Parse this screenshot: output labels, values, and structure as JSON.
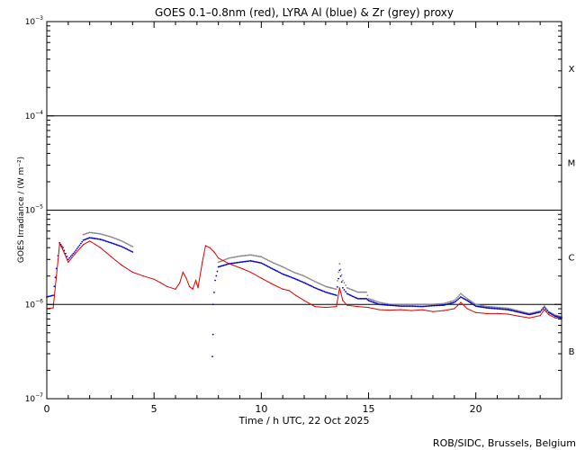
{
  "chart_data": {
    "type": "line",
    "title": "GOES 0.1–0.8nm (red), LYRA Al (blue) & Zr (grey) proxy",
    "xlabel": "Time / h UTC, 22 Oct 2025",
    "ylabel": "GOES Irradiance / (W m⁻²)",
    "y_scale": "log",
    "xlim": [
      0,
      24
    ],
    "ylim": [
      1e-07,
      0.001
    ],
    "x_ticks": [
      0,
      5,
      10,
      15,
      20
    ],
    "y_ticks": [
      {
        "value": 1e-07,
        "base": "10",
        "exp": "−7"
      },
      {
        "value": 1e-06,
        "base": "10",
        "exp": "−6"
      },
      {
        "value": 1e-05,
        "base": "10",
        "exp": "−5"
      },
      {
        "value": 0.0001,
        "base": "10",
        "exp": "−4"
      },
      {
        "value": 0.001,
        "base": "10",
        "exp": "−3"
      }
    ],
    "threshold_lines": [
      1e-06,
      1e-05,
      0.0001
    ],
    "flare_classes": [
      {
        "label": "X",
        "value": 0.00032
      },
      {
        "label": "M",
        "value": 3.2e-05
      },
      {
        "label": "C",
        "value": 3.2e-06
      },
      {
        "label": "B",
        "value": 3.2e-07
      }
    ],
    "grid": false,
    "series": [
      {
        "name": "GOES 0.1–0.8nm",
        "color": "#dd0000",
        "style": "line",
        "points": [
          [
            0.0,
            9e-07
          ],
          [
            0.3,
            9.2e-07
          ],
          [
            0.45,
            2e-06
          ],
          [
            0.6,
            4.4e-06
          ],
          [
            0.75,
            3.8e-06
          ],
          [
            1.0,
            2.8e-06
          ],
          [
            1.3,
            3.4e-06
          ],
          [
            1.7,
            4.3e-06
          ],
          [
            2.0,
            4.7e-06
          ],
          [
            2.5,
            4e-06
          ],
          [
            3.0,
            3.2e-06
          ],
          [
            3.5,
            2.6e-06
          ],
          [
            4.0,
            2.2e-06
          ],
          [
            4.5,
            2e-06
          ],
          [
            5.0,
            1.85e-06
          ],
          [
            5.3,
            1.7e-06
          ],
          [
            5.6,
            1.55e-06
          ],
          [
            6.0,
            1.45e-06
          ],
          [
            6.2,
            1.7e-06
          ],
          [
            6.35,
            2.2e-06
          ],
          [
            6.5,
            1.9e-06
          ],
          [
            6.65,
            1.55e-06
          ],
          [
            6.8,
            1.45e-06
          ],
          [
            6.95,
            1.8e-06
          ],
          [
            7.05,
            1.5e-06
          ],
          [
            7.25,
            2.8e-06
          ],
          [
            7.4,
            4.2e-06
          ],
          [
            7.6,
            4e-06
          ],
          [
            7.8,
            3.6e-06
          ],
          [
            8.0,
            3.1e-06
          ],
          [
            8.5,
            2.7e-06
          ],
          [
            9.0,
            2.45e-06
          ],
          [
            9.5,
            2.2e-06
          ],
          [
            10.0,
            1.9e-06
          ],
          [
            10.5,
            1.65e-06
          ],
          [
            11.0,
            1.45e-06
          ],
          [
            11.3,
            1.4e-06
          ],
          [
            11.6,
            1.25e-06
          ],
          [
            12.0,
            1.1e-06
          ],
          [
            12.5,
            9.5e-07
          ],
          [
            13.0,
            9.3e-07
          ],
          [
            13.5,
            9.5e-07
          ],
          [
            13.65,
            1.5e-06
          ],
          [
            13.8,
            1.1e-06
          ],
          [
            14.0,
            9.8e-07
          ],
          [
            14.5,
            9.5e-07
          ],
          [
            15.0,
            9.3e-07
          ],
          [
            15.5,
            8.8e-07
          ],
          [
            16.0,
            8.7e-07
          ],
          [
            16.5,
            8.8e-07
          ],
          [
            17.0,
            8.6e-07
          ],
          [
            17.5,
            8.8e-07
          ],
          [
            18.0,
            8.4e-07
          ],
          [
            18.5,
            8.6e-07
          ],
          [
            19.0,
            9e-07
          ],
          [
            19.3,
            1.05e-06
          ],
          [
            19.6,
            9e-07
          ],
          [
            20.0,
            8.2e-07
          ],
          [
            20.5,
            8e-07
          ],
          [
            21.0,
            8e-07
          ],
          [
            21.5,
            7.9e-07
          ],
          [
            22.0,
            7.5e-07
          ],
          [
            22.5,
            7.2e-07
          ],
          [
            23.0,
            7.6e-07
          ],
          [
            23.2,
            8.8e-07
          ],
          [
            23.4,
            7.8e-07
          ],
          [
            23.7,
            7.2e-07
          ],
          [
            24.0,
            7e-07
          ]
        ]
      },
      {
        "name": "LYRA Al",
        "color": "#0000cc",
        "style": "dots",
        "points": [
          [
            0.0,
            1.2e-06
          ],
          [
            0.3,
            1.25e-06
          ],
          [
            0.45,
            2.4e-06
          ],
          [
            0.6,
            4.5e-06
          ],
          [
            0.75,
            4e-06
          ],
          [
            1.0,
            3e-06
          ],
          [
            1.3,
            3.6e-06
          ],
          [
            1.7,
            4.8e-06
          ],
          [
            2.0,
            5.1e-06
          ],
          [
            2.5,
            4.9e-06
          ],
          [
            3.0,
            4.5e-06
          ],
          [
            3.5,
            4.1e-06
          ],
          [
            4.0,
            3.6e-06
          ],
          [
            7.75,
            1e-06
          ],
          [
            7.85,
            1.8e-06
          ],
          [
            8.0,
            2.5e-06
          ],
          [
            8.5,
            2.7e-06
          ],
          [
            9.0,
            2.8e-06
          ],
          [
            9.5,
            2.9e-06
          ],
          [
            10.0,
            2.75e-06
          ],
          [
            10.5,
            2.4e-06
          ],
          [
            11.0,
            2.1e-06
          ],
          [
            11.5,
            1.9e-06
          ],
          [
            12.0,
            1.7e-06
          ],
          [
            12.5,
            1.5e-06
          ],
          [
            13.0,
            1.35e-06
          ],
          [
            13.5,
            1.25e-06
          ],
          [
            13.65,
            2.3e-06
          ],
          [
            13.8,
            1.5e-06
          ],
          [
            14.0,
            1.3e-06
          ],
          [
            14.5,
            1.15e-06
          ],
          [
            14.9,
            1.15e-06
          ],
          [
            15.0,
            1.1e-06
          ],
          [
            15.5,
            1e-06
          ],
          [
            16.0,
            9.8e-07
          ],
          [
            16.5,
            9.6e-07
          ],
          [
            17.0,
            9.6e-07
          ],
          [
            17.5,
            9.5e-07
          ],
          [
            18.0,
            9.7e-07
          ],
          [
            18.5,
            9.8e-07
          ],
          [
            19.0,
            1.05e-06
          ],
          [
            19.3,
            1.2e-06
          ],
          [
            19.6,
            1.1e-06
          ],
          [
            20.0,
            9.6e-07
          ],
          [
            20.5,
            9.2e-07
          ],
          [
            21.0,
            9e-07
          ],
          [
            21.5,
            8.8e-07
          ],
          [
            22.5,
            7.8e-07
          ],
          [
            23.0,
            8.3e-07
          ],
          [
            23.2,
            9.3e-07
          ],
          [
            23.4,
            8.2e-07
          ],
          [
            23.7,
            7.5e-07
          ],
          [
            24.0,
            7.2e-07
          ]
        ]
      },
      {
        "name": "LYRA Zr",
        "color": "#888888",
        "style": "dots",
        "points": [
          [
            1.7,
            5.5e-06
          ],
          [
            2.0,
            5.8e-06
          ],
          [
            2.5,
            5.6e-06
          ],
          [
            3.0,
            5.2e-06
          ],
          [
            3.5,
            4.7e-06
          ],
          [
            4.0,
            4.1e-06
          ],
          [
            8.0,
            2.8e-06
          ],
          [
            8.5,
            3.1e-06
          ],
          [
            9.0,
            3.25e-06
          ],
          [
            9.5,
            3.35e-06
          ],
          [
            10.0,
            3.2e-06
          ],
          [
            10.5,
            2.8e-06
          ],
          [
            11.0,
            2.5e-06
          ],
          [
            11.5,
            2.2e-06
          ],
          [
            12.0,
            2e-06
          ],
          [
            12.5,
            1.75e-06
          ],
          [
            13.0,
            1.55e-06
          ],
          [
            13.5,
            1.45e-06
          ],
          [
            13.65,
            2.7e-06
          ],
          [
            13.8,
            1.8e-06
          ],
          [
            14.0,
            1.5e-06
          ],
          [
            14.5,
            1.35e-06
          ],
          [
            14.9,
            1.35e-06
          ],
          [
            15.0,
            1.15e-06
          ],
          [
            15.5,
            1.05e-06
          ],
          [
            16.0,
            1e-06
          ],
          [
            16.5,
            1e-06
          ],
          [
            17.0,
            1e-06
          ],
          [
            17.5,
            1e-06
          ],
          [
            18.0,
            1e-06
          ],
          [
            18.5,
            1.02e-06
          ],
          [
            19.0,
            1.1e-06
          ],
          [
            19.3,
            1.3e-06
          ],
          [
            19.6,
            1.15e-06
          ],
          [
            20.0,
            1e-06
          ],
          [
            20.5,
            9.5e-07
          ],
          [
            21.0,
            9.3e-07
          ],
          [
            21.5,
            9.1e-07
          ],
          [
            22.5,
            8e-07
          ],
          [
            23.0,
            8.5e-07
          ],
          [
            23.2,
            9.6e-07
          ],
          [
            23.4,
            8.4e-07
          ],
          [
            23.7,
            7.7e-07
          ],
          [
            24.0,
            7.4e-07
          ]
        ]
      }
    ],
    "blue_spikes": [
      [
        7.75,
        4.8e-07
      ],
      [
        7.72,
        2.8e-07
      ]
    ]
  },
  "footer": {
    "credit": "ROB/SIDC, Brussels, Belgium"
  }
}
